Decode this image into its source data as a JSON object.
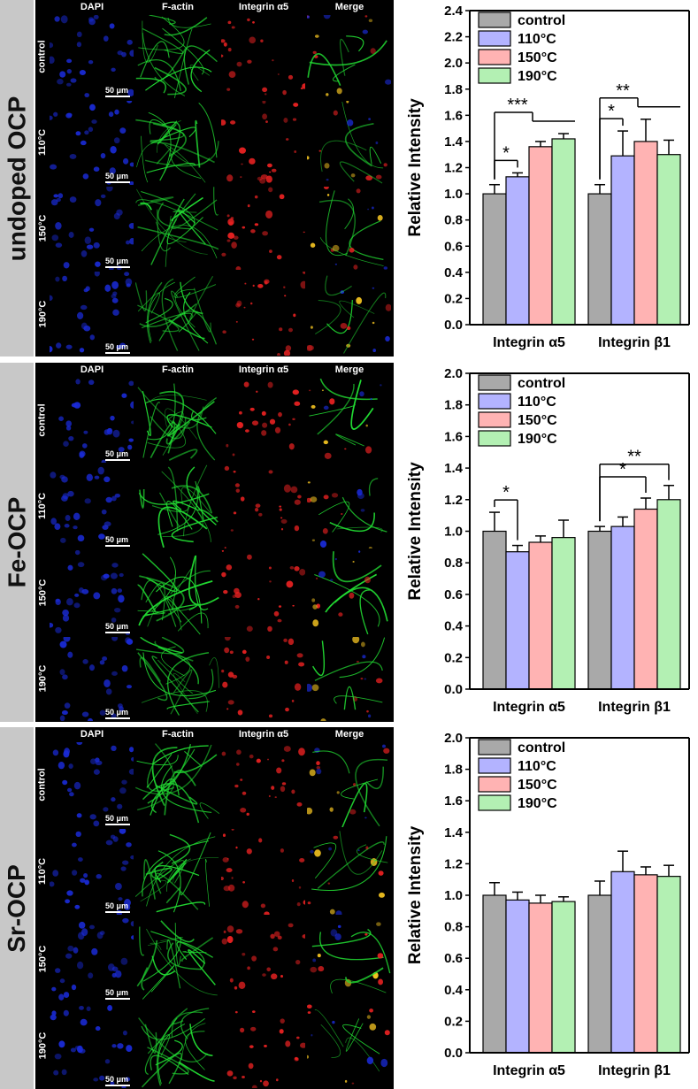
{
  "groups": [
    {
      "label": "undoped OCP"
    },
    {
      "label": "Fe-OCP"
    },
    {
      "label": "Sr-OCP"
    }
  ],
  "columns": [
    "DAPI",
    "F-actin",
    "Integrin α5",
    "Merge"
  ],
  "rows": [
    "control",
    "110°C",
    "150°C",
    "190°C"
  ],
  "scale_bar": "50 μm",
  "colors": {
    "control": "#a9a9a9",
    "110°C": "#b3b3ff",
    "150°C": "#ffb3b3",
    "190°C": "#b3f0b3",
    "band": "#c8c8c8"
  },
  "chart_data": [
    {
      "type": "bar",
      "categories": [
        "Integrin α5",
        "Integrin β1"
      ],
      "ylabel": "Relative Intensity",
      "ylim": [
        0,
        2.4
      ],
      "yticks": [
        0.0,
        0.2,
        0.4,
        0.6,
        0.8,
        1.0,
        1.2,
        1.4,
        1.6,
        1.8,
        2.0,
        2.2,
        2.4
      ],
      "legend": "top-left",
      "series": [
        {
          "name": "control",
          "values": [
            1.0,
            1.0
          ],
          "errors": [
            0.07,
            0.07
          ]
        },
        {
          "name": "110°C",
          "values": [
            1.13,
            1.29
          ],
          "errors": [
            0.03,
            0.19
          ]
        },
        {
          "name": "150°C",
          "values": [
            1.36,
            1.4
          ],
          "errors": [
            0.04,
            0.17
          ]
        },
        {
          "name": "190°C",
          "values": [
            1.42,
            1.3
          ],
          "errors": [
            0.04,
            0.11
          ]
        }
      ],
      "annotations": [
        {
          "text": "*",
          "category": 0,
          "from": 0,
          "to": [
            1
          ]
        },
        {
          "text": "***",
          "category": 0,
          "from": 0,
          "to": [
            2,
            3
          ]
        },
        {
          "text": "*",
          "category": 1,
          "from": 0,
          "to": [
            1
          ]
        },
        {
          "text": "**",
          "category": 1,
          "from": 0,
          "to": [
            2,
            3
          ]
        }
      ]
    },
    {
      "type": "bar",
      "categories": [
        "Integrin α5",
        "Integrin β1"
      ],
      "ylabel": "Relative Intensity",
      "ylim": [
        0,
        2.0
      ],
      "yticks": [
        0.0,
        0.2,
        0.4,
        0.6,
        0.8,
        1.0,
        1.2,
        1.4,
        1.6,
        1.8,
        2.0
      ],
      "legend": "top-left",
      "series": [
        {
          "name": "control",
          "values": [
            1.0,
            1.0
          ],
          "errors": [
            0.12,
            0.03
          ]
        },
        {
          "name": "110°C",
          "values": [
            0.87,
            1.03
          ],
          "errors": [
            0.04,
            0.06
          ]
        },
        {
          "name": "150°C",
          "values": [
            0.93,
            1.14
          ],
          "errors": [
            0.04,
            0.07
          ]
        },
        {
          "name": "190°C",
          "values": [
            0.96,
            1.2
          ],
          "errors": [
            0.11,
            0.09
          ]
        }
      ],
      "annotations": [
        {
          "text": "*",
          "category": 0,
          "from": 0,
          "to": [
            1
          ]
        },
        {
          "text": "*",
          "category": 1,
          "from": 0,
          "to": [
            2
          ]
        },
        {
          "text": "**",
          "category": 1,
          "from": 0,
          "to": [
            3
          ]
        }
      ]
    },
    {
      "type": "bar",
      "categories": [
        "Integrin α5",
        "Integrin β1"
      ],
      "ylabel": "Relative Intensity",
      "ylim": [
        0,
        2.0
      ],
      "yticks": [
        0.0,
        0.2,
        0.4,
        0.6,
        0.8,
        1.0,
        1.2,
        1.4,
        1.6,
        1.8,
        2.0
      ],
      "legend": "top-left",
      "series": [
        {
          "name": "control",
          "values": [
            1.0,
            1.0
          ],
          "errors": [
            0.08,
            0.09
          ]
        },
        {
          "name": "110°C",
          "values": [
            0.97,
            1.15
          ],
          "errors": [
            0.05,
            0.13
          ]
        },
        {
          "name": "150°C",
          "values": [
            0.95,
            1.13
          ],
          "errors": [
            0.05,
            0.05
          ]
        },
        {
          "name": "190°C",
          "values": [
            0.96,
            1.12
          ],
          "errors": [
            0.03,
            0.07
          ]
        }
      ],
      "annotations": []
    }
  ]
}
